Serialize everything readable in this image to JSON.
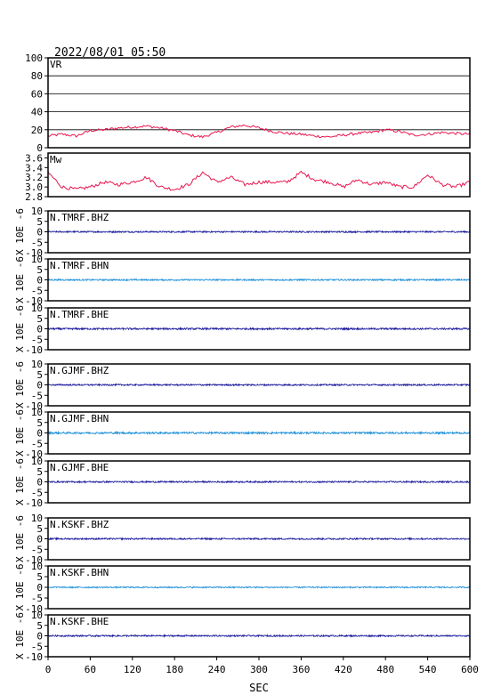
{
  "header": {
    "timestamp": "2022/08/01  05:50"
  },
  "chart_data": [
    {
      "type": "line",
      "label": "VR",
      "ylim": [
        0,
        100
      ],
      "yticks": [
        0,
        20,
        40,
        60,
        80,
        100
      ],
      "grid": true,
      "color": "#e8174f",
      "x": [
        0,
        20,
        40,
        60,
        80,
        100,
        120,
        140,
        160,
        180,
        200,
        220,
        240,
        260,
        280,
        300,
        320,
        340,
        360,
        380,
        400,
        420,
        440,
        460,
        480,
        500,
        520,
        540,
        560,
        580,
        600
      ],
      "values": [
        13,
        15,
        13,
        19,
        20,
        22,
        23,
        24,
        22,
        19,
        14,
        12,
        17,
        23,
        25,
        22,
        18,
        16,
        15,
        13,
        12,
        14,
        16,
        17,
        20,
        18,
        14,
        15,
        17,
        16,
        15
      ]
    },
    {
      "type": "line",
      "label": "Mw",
      "ylim": [
        2.8,
        3.7
      ],
      "yticks": [
        2.8,
        3.0,
        3.2,
        3.4,
        3.6
      ],
      "ytick_labels": [
        "2.8",
        "3.0",
        "3.2",
        "3.4",
        "3.6"
      ],
      "color": "#e8174f",
      "x": [
        0,
        20,
        40,
        60,
        80,
        100,
        120,
        140,
        160,
        180,
        200,
        220,
        240,
        260,
        280,
        300,
        320,
        340,
        360,
        380,
        400,
        420,
        440,
        460,
        480,
        500,
        520,
        540,
        560,
        580,
        600
      ],
      "values": [
        3.3,
        3.0,
        2.95,
        3.0,
        3.1,
        3.05,
        3.1,
        3.2,
        3.0,
        2.95,
        3.05,
        3.3,
        3.1,
        3.2,
        3.05,
        3.1,
        3.1,
        3.1,
        3.3,
        3.15,
        3.1,
        3.0,
        3.15,
        3.05,
        3.1,
        3.0,
        3.0,
        3.25,
        3.05,
        3.0,
        3.1
      ]
    },
    {
      "type": "line",
      "label": "N.TMRF.BHZ",
      "ylim": [
        -10,
        10
      ],
      "yticks": [
        -10,
        -5,
        0,
        5,
        10
      ],
      "offset": 0,
      "amplitude": 0.35,
      "color": "#1a1a9c"
    },
    {
      "type": "line",
      "label": "N.TMRF.BHN",
      "ylim": [
        -10,
        10
      ],
      "yticks": [
        -10,
        -5,
        0,
        5,
        10
      ],
      "offset": 0,
      "amplitude": 0.35,
      "color": "#1e90d8"
    },
    {
      "type": "line",
      "label": "N.TMRF.BHE",
      "ylim": [
        -10,
        10
      ],
      "yticks": [
        -10,
        -5,
        0,
        5,
        10
      ],
      "offset": 0,
      "amplitude": 0.4,
      "color": "#1a1a9c"
    },
    {
      "type": "line",
      "label": "N.GJMF.BHZ",
      "ylim": [
        -10,
        10
      ],
      "yticks": [
        -10,
        -5,
        0,
        5,
        10
      ],
      "offset": 0,
      "amplitude": 0.35,
      "color": "#1a1a9c"
    },
    {
      "type": "line",
      "label": "N.GJMF.BHN",
      "ylim": [
        -10,
        10
      ],
      "yticks": [
        -10,
        -5,
        0,
        5,
        10
      ],
      "offset": 0,
      "amplitude": 0.45,
      "color": "#1e90d8"
    },
    {
      "type": "line",
      "label": "N.GJMF.BHE",
      "ylim": [
        -10,
        10
      ],
      "yticks": [
        -10,
        -5,
        0,
        5,
        10
      ],
      "offset": 0,
      "amplitude": 0.35,
      "color": "#1a1a9c"
    },
    {
      "type": "line",
      "label": "N.KSKF.BHZ",
      "ylim": [
        -10,
        10
      ],
      "yticks": [
        -10,
        -5,
        0,
        5,
        10
      ],
      "offset": 0,
      "amplitude": 0.35,
      "color": "#1a1a9c"
    },
    {
      "type": "line",
      "label": "N.KSKF.BHN",
      "ylim": [
        -10,
        10
      ],
      "yticks": [
        -10,
        -5,
        0,
        5,
        10
      ],
      "offset": 0,
      "amplitude": 0.3,
      "color": "#1e90d8"
    },
    {
      "type": "line",
      "label": "N.KSKF.BHE",
      "ylim": [
        -10,
        10
      ],
      "yticks": [
        -10,
        -5,
        0,
        5,
        10
      ],
      "offset": 0,
      "amplitude": 0.35,
      "color": "#1a1a9c"
    }
  ],
  "shared": {
    "xlim": [
      0,
      600
    ],
    "xticks": [
      0,
      60,
      120,
      180,
      240,
      300,
      360,
      420,
      480,
      540,
      600
    ],
    "xlabel": "SEC",
    "waveform_ylabel": "X 10E -6"
  }
}
